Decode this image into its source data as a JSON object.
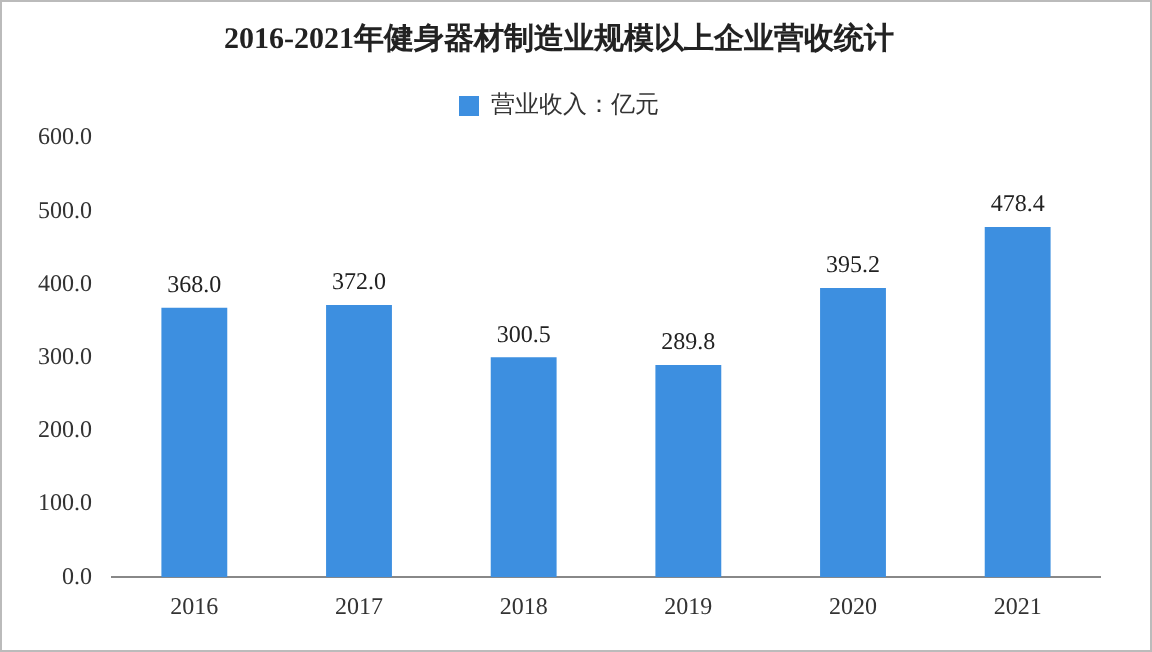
{
  "chart_data": {
    "type": "bar",
    "title": "2016-2021年健身器材制造业规模以上企业营收统计",
    "categories": [
      "2016",
      "2017",
      "2018",
      "2019",
      "2020",
      "2021"
    ],
    "series": [
      {
        "name": "营业收入：亿元",
        "color": "#3d8fe0",
        "values": [
          368.0,
          372.0,
          300.5,
          289.8,
          395.2,
          478.4
        ]
      }
    ],
    "ylim": [
      0,
      600
    ],
    "yticks": [
      {
        "value": 0,
        "label": "0.0"
      },
      {
        "value": 100,
        "label": "100.0"
      },
      {
        "value": 200,
        "label": "200.0"
      },
      {
        "value": 300,
        "label": "300.0"
      },
      {
        "value": 400,
        "label": "400.0"
      },
      {
        "value": 500,
        "label": "500.0"
      },
      {
        "value": 600,
        "label": "600.0"
      }
    ],
    "value_labels": [
      "368.0",
      "372.0",
      "300.5",
      "289.8",
      "395.2",
      "478.4"
    ],
    "grid": false,
    "legend": "top"
  }
}
